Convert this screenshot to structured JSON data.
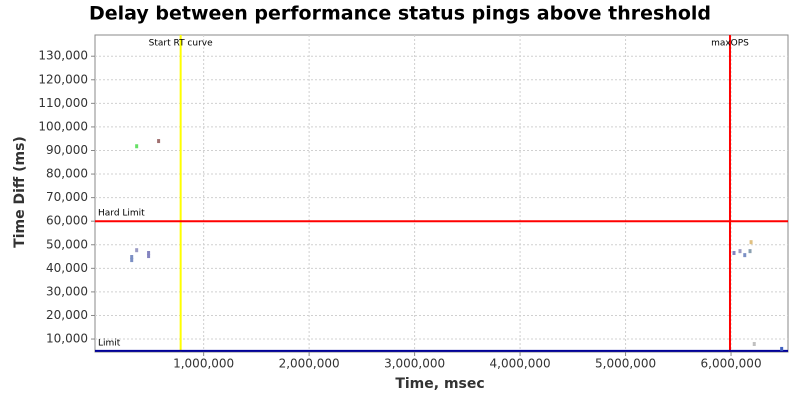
{
  "chart_data": {
    "type": "scatter",
    "title": "Delay between performance status pings above threshold",
    "x_label": "Time, msec",
    "y_label": "Time Diff (ms)",
    "x": [
      318000,
      318000,
      365000,
      365000,
      478000,
      478000,
      573000,
      6028000,
      6085000,
      6130000,
      6180000,
      6190000,
      6220000,
      6480000
    ],
    "values": [
      44800,
      43500,
      47700,
      91800,
      46500,
      45200,
      94000,
      46500,
      47300,
      45600,
      47300,
      51100,
      7900,
      5800
    ],
    "colors": [
      "#7b8fc4",
      "#7b8fc4",
      "#9a9ac4",
      "#66e066",
      "#8484c0",
      "#8484c0",
      "#a07070",
      "#8484c0",
      "#9a9ac4",
      "#7b8fc4",
      "#8aa0b0",
      "#e0c080",
      "#c0c0c0",
      "#4060c0"
    ],
    "xlim": [
      -30000,
      6540000
    ],
    "ylim": [
      4500,
      139000
    ],
    "xticks": [
      {
        "value": 1000000,
        "label": "1,000,000"
      },
      {
        "value": 2000000,
        "label": "2,000,000"
      },
      {
        "value": 3000000,
        "label": "3,000,000"
      },
      {
        "value": 4000000,
        "label": "4,000,000"
      },
      {
        "value": 5000000,
        "label": "5,000,000"
      },
      {
        "value": 6000000,
        "label": "6,000,000"
      }
    ],
    "yticks": [
      {
        "value": 10000,
        "label": "10,000"
      },
      {
        "value": 20000,
        "label": "20,000"
      },
      {
        "value": 30000,
        "label": "30,000"
      },
      {
        "value": 40000,
        "label": "40,000"
      },
      {
        "value": 50000,
        "label": "50,000"
      },
      {
        "value": 60000,
        "label": "60,000"
      },
      {
        "value": 70000,
        "label": "70,000"
      },
      {
        "value": 80000,
        "label": "80,000"
      },
      {
        "value": 90000,
        "label": "90,000"
      },
      {
        "value": 100000,
        "label": "100,000"
      },
      {
        "value": 110000,
        "label": "110,000"
      },
      {
        "value": 120000,
        "label": "120,000"
      },
      {
        "value": 130000,
        "label": "130,000"
      }
    ],
    "grid": true,
    "vlines": [
      {
        "value": 782000,
        "label": "Start RT curve",
        "color": "#ffff00"
      },
      {
        "value": 5990000,
        "label": "maxOPS",
        "color": "#ff0000"
      }
    ],
    "hlines": [
      {
        "value": 60000,
        "label": "Hard Limit",
        "color": "#ff0000"
      },
      {
        "value": 5000,
        "label": "Limit",
        "color": "#000099"
      }
    ]
  }
}
